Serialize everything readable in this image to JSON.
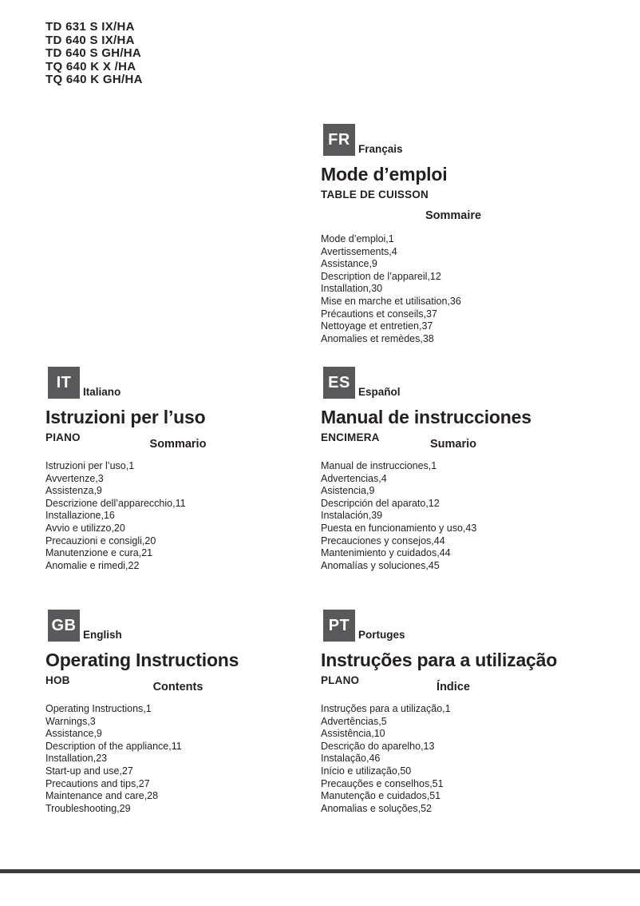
{
  "page": {
    "colors": {
      "badge_bg": "#59595b",
      "badge_text": "#ffffff",
      "text": "#231f20",
      "footer_bar": "#3b3b3d"
    },
    "models": [
      "TD 631 S IX/HA",
      "TD 640 S IX/HA",
      "TD 640 S GH/HA",
      "TQ 640 K X /HA",
      "TQ 640 K GH/HA"
    ],
    "sections": [
      {
        "code": "FR",
        "language": "Français",
        "title": "Mode d’emploi",
        "subtitle": "TABLE DE CUISSON",
        "contents_heading": "Sommaire",
        "items": [
          "Mode d’emploi,1",
          "Avertissements,4",
          "Assistance,9",
          "Description de l’appareil,12",
          "Installation,30",
          "Mise en marche et utilisation,36",
          "Précautions et conseils,37",
          "Nettoyage et entretien,37",
          "Anomalies et remèdes,38"
        ]
      },
      {
        "code": "IT",
        "language": "Italiano",
        "title": "Istruzioni per l’uso",
        "subtitle": "PIANO",
        "contents_heading": "Sommario",
        "items": [
          "Istruzioni per l’uso,1",
          "Avvertenze,3",
          "Assistenza,9",
          "Descrizione dell’apparecchio,11",
          "Installazione,16",
          "Avvio e utilizzo,20",
          "Precauzioni e consigli,20",
          "Manutenzione e cura,21",
          "Anomalie e rimedi,22"
        ]
      },
      {
        "code": "ES",
        "language": "Español",
        "title": "Manual de instrucciones",
        "subtitle": "ENCIMERA",
        "contents_heading": "Sumario",
        "items": [
          "Manual de instrucciones,1",
          "Advertencias,4",
          "Asistencia,9",
          "Descripción del aparato,12",
          "Instalación,39",
          "Puesta en funcionamiento y uso,43",
          "Precauciones y consejos,44",
          "Mantenimiento y cuidados,44",
          "Anomalías y soluciones,45"
        ]
      },
      {
        "code": "GB",
        "language": "English",
        "title": "Operating Instructions",
        "subtitle": "HOB",
        "contents_heading": "Contents",
        "items": [
          "Operating Instructions,1",
          "Warnings,3",
          "Assistance,9",
          "Description of the appliance,11",
          "Installation,23",
          "Start-up and use,27",
          "Precautions and tips,27",
          "Maintenance and care,28",
          "Troubleshooting,29"
        ]
      },
      {
        "code": "PT",
        "language": "Portuges",
        "title": "Instruções para a utilização",
        "subtitle": "PLANO",
        "contents_heading": "Índice",
        "items": [
          "Instruções para a utilização,1",
          "Advertências,5",
          "Assistência,10",
          "Descrição do aparelho,13",
          "Instalação,46",
          "Início e utilização,50",
          "Precauções e conselhos,51",
          "Manutenção e cuidados,51",
          "Anomalias e soluções,52"
        ]
      }
    ]
  }
}
